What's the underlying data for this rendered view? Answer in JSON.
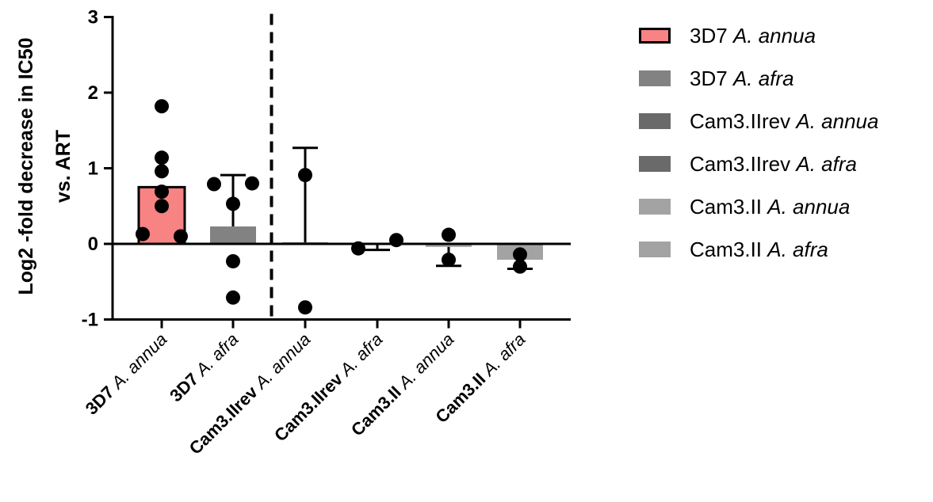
{
  "chart_data": {
    "type": "bar",
    "ylabel_lines": [
      "Log2 -fold decrease in IC50",
      "vs. ART"
    ],
    "ylim": [
      -1,
      3
    ],
    "yticks": [
      "-1",
      "0",
      "1",
      "2",
      "3"
    ],
    "grid": false,
    "legend_position": "right",
    "divider_after_category": 2,
    "categories": [
      {
        "strain": "3D7",
        "species": "A. annua"
      },
      {
        "strain": "3D7",
        "species": "A. afra"
      },
      {
        "strain": "Cam3.IIrev",
        "species": "A. annua"
      },
      {
        "strain": "Cam3.IIrev",
        "species": "A. afra"
      },
      {
        "strain": "Cam3.II",
        "species": "A. annua"
      },
      {
        "strain": "Cam3.II",
        "species": "A. afra"
      }
    ],
    "series": [
      {
        "name": "3D7 A. annua",
        "strain": "3D7",
        "species": "A. annua",
        "color": "#f88383",
        "outline": "#000000",
        "value": 0.75,
        "error": 0.0,
        "error_dir": "up",
        "points": [
          1.82,
          1.14,
          0.96,
          0.69,
          0.5,
          0.13,
          0.1
        ]
      },
      {
        "name": "3D7 A. afra",
        "strain": "3D7",
        "species": "A. afra",
        "color": "#828282",
        "outline": null,
        "value": 0.23,
        "error": 0.68,
        "error_dir": "up",
        "points": [
          0.79,
          0.8,
          0.53,
          -0.23,
          -0.71
        ]
      },
      {
        "name": "Cam3.IIrev A. annua",
        "strain": "Cam3.IIrev",
        "species": "A. annua",
        "color": "#6a6a6a",
        "outline": null,
        "value": 0.02,
        "error": 1.25,
        "error_dir": "up",
        "points": [
          0.91,
          -0.84
        ]
      },
      {
        "name": "Cam3.IIrev A. afra",
        "strain": "Cam3.IIrev",
        "species": "A. afra",
        "color": "#6a6a6a",
        "outline": null,
        "value": -0.01,
        "error": 0.07,
        "error_dir": "down",
        "points": [
          -0.06,
          0.05
        ]
      },
      {
        "name": "Cam3.II A. annua",
        "strain": "Cam3.II",
        "species": "A. annua",
        "color": "#a3a3a3",
        "outline": null,
        "value": -0.04,
        "error": 0.25,
        "error_dir": "down",
        "points": [
          0.12,
          -0.21
        ]
      },
      {
        "name": "Cam3.II A. afra",
        "strain": "Cam3.II",
        "species": "A. afra",
        "color": "#a3a3a3",
        "outline": null,
        "value": -0.21,
        "error": 0.12,
        "error_dir": "down",
        "points": [
          -0.14,
          -0.3
        ]
      }
    ]
  }
}
